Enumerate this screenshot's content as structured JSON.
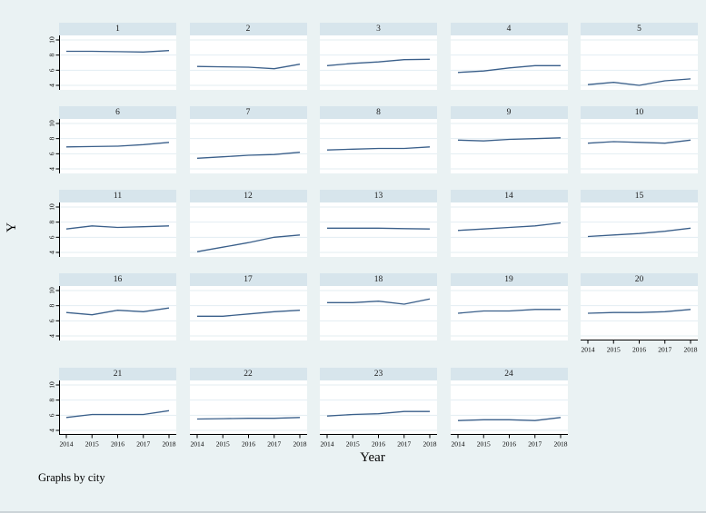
{
  "window": {
    "background": "#eaf2f3"
  },
  "colors": {
    "panel_title_bg": "#d7e5ec",
    "plot_bg": "#ffffff",
    "gridline": "#e3edf2",
    "axis": "#000000",
    "series_line": "#3a5f8a",
    "text": "#000000"
  },
  "chart_data": {
    "type": "line",
    "layout": "small-multiples-by-group",
    "group_label": "city",
    "title": "",
    "xlabel": "Year",
    "ylabel": "Y",
    "note": "Graphs by city",
    "x": [
      2014,
      2015,
      2016,
      2017,
      2018
    ],
    "xticks": [
      "2014",
      "2015",
      "2016",
      "2017",
      "2018"
    ],
    "yticks": [
      4,
      6,
      8,
      10
    ],
    "ytick_labels": [
      "4",
      "6",
      "8",
      "10"
    ],
    "ylim": [
      3.4,
      10.6
    ],
    "grid": true,
    "legend": "none",
    "columns": 5,
    "panels": [
      {
        "city": "1",
        "values": [
          8.5,
          8.5,
          8.45,
          8.4,
          8.6
        ]
      },
      {
        "city": "2",
        "values": [
          6.5,
          6.45,
          6.4,
          6.2,
          6.8
        ]
      },
      {
        "city": "3",
        "values": [
          6.6,
          6.9,
          7.1,
          7.4,
          7.45
        ]
      },
      {
        "city": "4",
        "values": [
          5.7,
          5.9,
          6.3,
          6.6,
          6.6
        ]
      },
      {
        "city": "5",
        "values": [
          4.1,
          4.4,
          4.0,
          4.6,
          4.85
        ]
      },
      {
        "city": "6",
        "values": [
          6.9,
          6.95,
          7.0,
          7.2,
          7.5
        ]
      },
      {
        "city": "7",
        "values": [
          5.4,
          5.6,
          5.8,
          5.9,
          6.2
        ]
      },
      {
        "city": "8",
        "values": [
          6.5,
          6.6,
          6.7,
          6.7,
          6.9
        ]
      },
      {
        "city": "9",
        "values": [
          7.8,
          7.7,
          7.9,
          8.0,
          8.1
        ]
      },
      {
        "city": "10",
        "values": [
          7.4,
          7.6,
          7.5,
          7.4,
          7.8
        ]
      },
      {
        "city": "11",
        "values": [
          7.1,
          7.5,
          7.3,
          7.4,
          7.5
        ]
      },
      {
        "city": "12",
        "values": [
          4.1,
          4.7,
          5.3,
          6.0,
          6.3
        ]
      },
      {
        "city": "13",
        "values": [
          7.2,
          7.2,
          7.2,
          7.15,
          7.1
        ]
      },
      {
        "city": "14",
        "values": [
          6.9,
          7.1,
          7.3,
          7.5,
          7.9
        ]
      },
      {
        "city": "15",
        "values": [
          6.1,
          6.3,
          6.5,
          6.8,
          7.2
        ]
      },
      {
        "city": "16",
        "values": [
          7.1,
          6.8,
          7.4,
          7.2,
          7.7
        ]
      },
      {
        "city": "17",
        "values": [
          6.6,
          6.6,
          6.9,
          7.2,
          7.4
        ]
      },
      {
        "city": "18",
        "values": [
          8.4,
          8.4,
          8.6,
          8.2,
          8.9
        ]
      },
      {
        "city": "19",
        "values": [
          7.0,
          7.3,
          7.3,
          7.5,
          7.5
        ]
      },
      {
        "city": "20",
        "values": [
          7.0,
          7.1,
          7.1,
          7.2,
          7.5
        ]
      },
      {
        "city": "21",
        "values": [
          5.7,
          6.1,
          6.1,
          6.1,
          6.6
        ]
      },
      {
        "city": "22",
        "values": [
          5.5,
          5.55,
          5.6,
          5.6,
          5.7
        ]
      },
      {
        "city": "23",
        "values": [
          5.9,
          6.1,
          6.2,
          6.5,
          6.5
        ]
      },
      {
        "city": "24",
        "values": [
          5.3,
          5.4,
          5.4,
          5.3,
          5.7
        ]
      }
    ]
  }
}
